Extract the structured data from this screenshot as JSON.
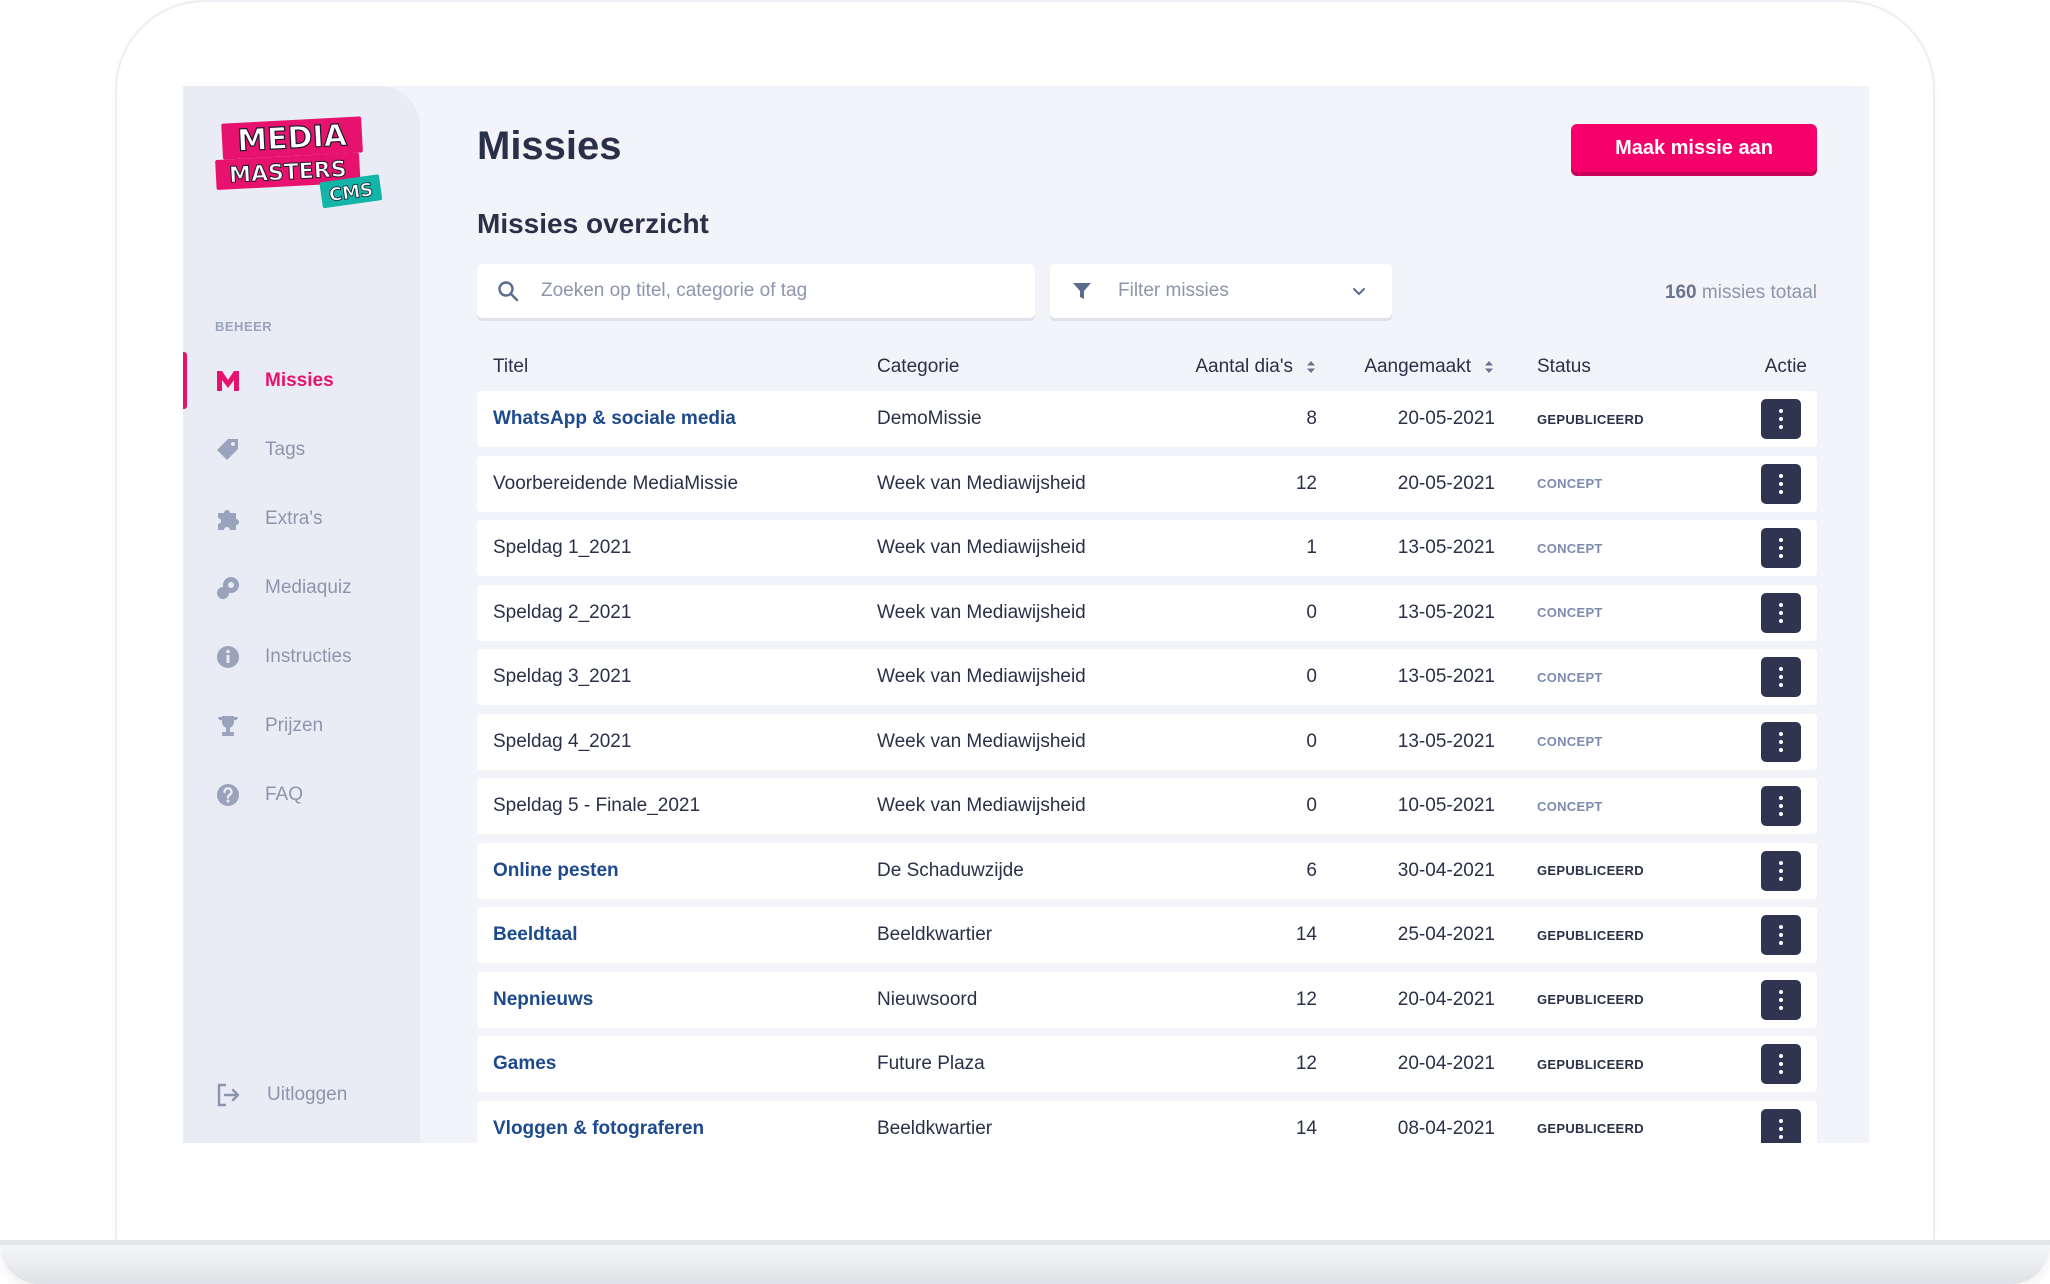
{
  "brand": {
    "line1": "MEDIA",
    "line2": "MASTERS",
    "badge": "CMS",
    "accent": "#e6126d",
    "badge_color": "#12b5a7"
  },
  "sidebar": {
    "section_label": "BEHEER",
    "items": [
      {
        "label": "Missies",
        "icon": "m-logo-icon",
        "active": true
      },
      {
        "label": "Tags",
        "icon": "tag-icon"
      },
      {
        "label": "Extra's",
        "icon": "puzzle-icon"
      },
      {
        "label": "Mediaquiz",
        "icon": "gamepad-icon"
      },
      {
        "label": "Instructies",
        "icon": "info-icon"
      },
      {
        "label": "Prijzen",
        "icon": "trophy-icon"
      },
      {
        "label": "FAQ",
        "icon": "question-icon"
      }
    ],
    "logout_label": "Uitloggen"
  },
  "header": {
    "title": "Missies",
    "create_button": "Maak missie aan"
  },
  "overview": {
    "title": "Missies overzicht",
    "search_placeholder": "Zoeken op titel, categorie of tag",
    "filter_label": "Filter missies",
    "total_count": "160",
    "total_suffix": "missies totaal"
  },
  "table": {
    "columns": {
      "title": "Titel",
      "category": "Categorie",
      "count": "Aantal dia's",
      "created": "Aangemaakt",
      "status": "Status",
      "action": "Actie"
    },
    "rows": [
      {
        "title": "WhatsApp & sociale media",
        "category": "DemoMissie",
        "count": "8",
        "created": "20-05-2021",
        "status": "GEPUBLICEERD"
      },
      {
        "title": "Voorbereidende MediaMissie",
        "category": "Week van Mediawijsheid",
        "count": "12",
        "created": "20-05-2021",
        "status": "CONCEPT"
      },
      {
        "title": "Speldag 1_2021",
        "category": "Week van Mediawijsheid",
        "count": "1",
        "created": "13-05-2021",
        "status": "CONCEPT"
      },
      {
        "title": "Speldag 2_2021",
        "category": "Week van Mediawijsheid",
        "count": "0",
        "created": "13-05-2021",
        "status": "CONCEPT"
      },
      {
        "title": "Speldag 3_2021",
        "category": "Week van Mediawijsheid",
        "count": "0",
        "created": "13-05-2021",
        "status": "CONCEPT"
      },
      {
        "title": "Speldag 4_2021",
        "category": "Week van Mediawijsheid",
        "count": "0",
        "created": "13-05-2021",
        "status": "CONCEPT"
      },
      {
        "title": "Speldag 5 - Finale_2021",
        "category": "Week van Mediawijsheid",
        "count": "0",
        "created": "10-05-2021",
        "status": "CONCEPT"
      },
      {
        "title": "Online pesten",
        "category": "De Schaduwzijde",
        "count": "6",
        "created": "30-04-2021",
        "status": "GEPUBLICEERD"
      },
      {
        "title": "Beeldtaal",
        "category": "Beeldkwartier",
        "count": "14",
        "created": "25-04-2021",
        "status": "GEPUBLICEERD"
      },
      {
        "title": "Nepnieuws",
        "category": "Nieuwsoord",
        "count": "12",
        "created": "20-04-2021",
        "status": "GEPUBLICEERD"
      },
      {
        "title": "Games",
        "category": "Future Plaza",
        "count": "12",
        "created": "20-04-2021",
        "status": "GEPUBLICEERD"
      },
      {
        "title": "Vloggen & fotograferen",
        "category": "Beeldkwartier",
        "count": "14",
        "created": "08-04-2021",
        "status": "GEPUBLICEERD"
      }
    ]
  },
  "colors": {
    "primary": "#f5006a",
    "link": "#1d4a8c",
    "action_button": "#2f3550",
    "concept": "#7b8bb0"
  }
}
